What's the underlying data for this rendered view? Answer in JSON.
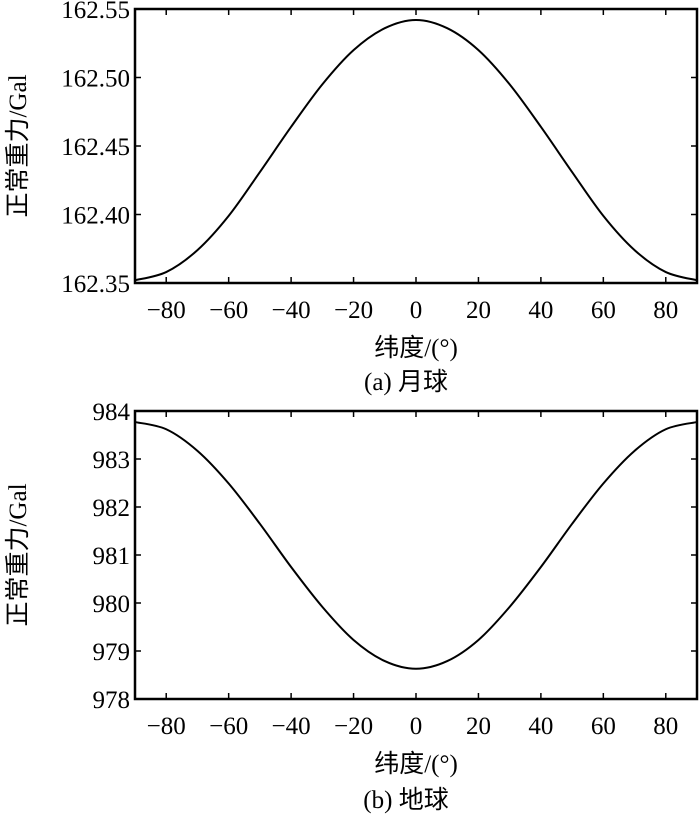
{
  "chart_data": [
    {
      "type": "line",
      "caption": "(a) 月球",
      "xlabel": "纬度/(°)",
      "ylabel": "正常重力/Gal",
      "xlim": [
        -90,
        90
      ],
      "ylim": [
        162.35,
        162.55
      ],
      "xticks": [
        -80,
        -60,
        -40,
        -20,
        0,
        20,
        40,
        60,
        80
      ],
      "yticks": [
        "162.35",
        "162.40",
        "162.45",
        "162.50",
        "162.55"
      ],
      "grid": false,
      "color": "#000000",
      "x": [
        -90,
        -80,
        -70,
        -60,
        -50,
        -40,
        -30,
        -20,
        -10,
        0,
        10,
        20,
        30,
        40,
        50,
        60,
        70,
        80,
        90
      ],
      "y": [
        162.352,
        162.358,
        162.374,
        162.399,
        162.431,
        162.464,
        162.495,
        162.52,
        162.536,
        162.542,
        162.536,
        162.52,
        162.495,
        162.464,
        162.431,
        162.399,
        162.374,
        162.358,
        162.352
      ]
    },
    {
      "type": "line",
      "caption": "(b) 地球",
      "xlabel": "纬度/(°)",
      "ylabel": "正常重力/Gal",
      "xlim": [
        -90,
        90
      ],
      "ylim": [
        978,
        984
      ],
      "xticks": [
        -80,
        -60,
        -40,
        -20,
        0,
        20,
        40,
        60,
        80
      ],
      "yticks": [
        "978",
        "979",
        "980",
        "981",
        "982",
        "983",
        "984"
      ],
      "grid": false,
      "color": "#000000",
      "x": [
        -90,
        -80,
        -70,
        -60,
        -50,
        -40,
        -30,
        -20,
        -10,
        0,
        10,
        20,
        30,
        40,
        50,
        60,
        70,
        80,
        90
      ],
      "y": [
        983.77,
        983.62,
        983.17,
        982.49,
        981.65,
        980.75,
        979.92,
        979.23,
        978.79,
        978.63,
        978.79,
        979.23,
        979.92,
        980.75,
        981.65,
        982.49,
        983.17,
        983.62,
        983.77
      ]
    }
  ]
}
